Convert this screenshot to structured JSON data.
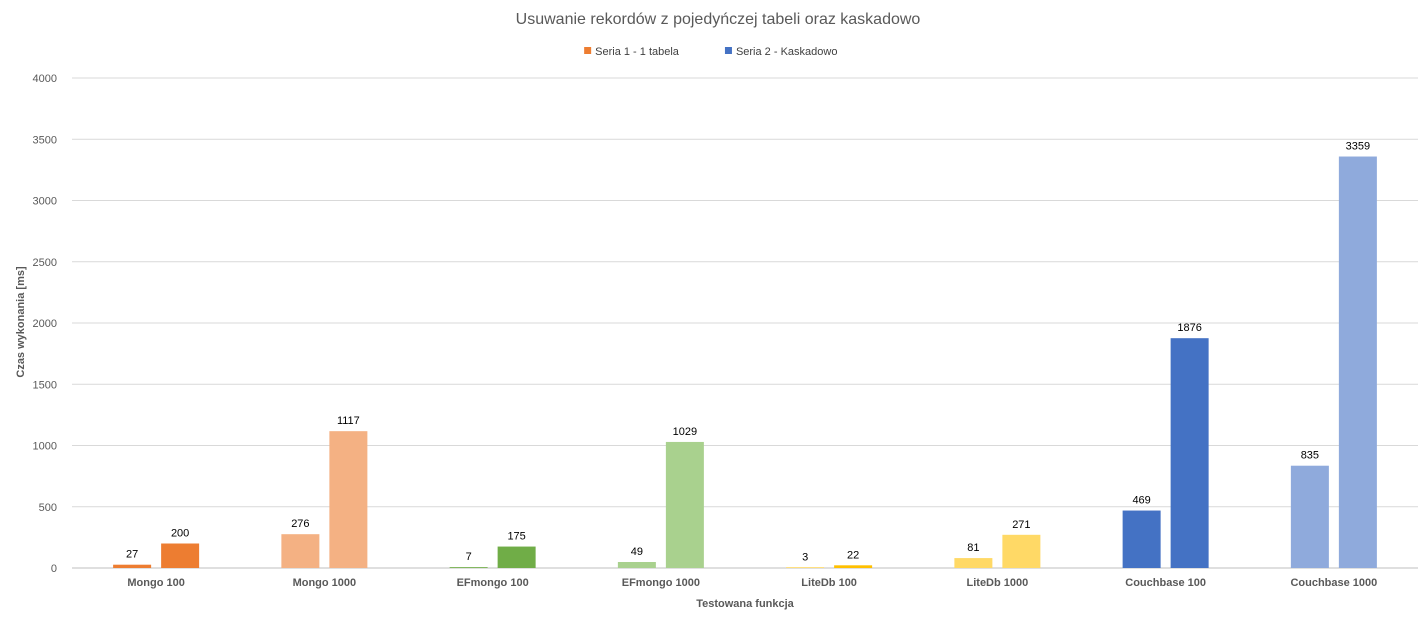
{
  "chart_data": {
    "type": "bar",
    "title": "Usuwanie rekordów z pojedyńczej tabeli oraz kaskadowo",
    "xlabel": "Testowana funkcja",
    "ylabel": "Czas wykonania [ms]",
    "ylim": [
      0,
      4000
    ],
    "yticks": [
      0,
      500,
      1000,
      1500,
      2000,
      2500,
      3000,
      3500,
      4000
    ],
    "grid": true,
    "legend_position": "top",
    "categories": [
      "Mongo  100",
      "Mongo 1000",
      "EFmongo 100",
      "EFmongo 1000",
      "LiteDb 100",
      "LiteDb 1000",
      "Couchbase 100",
      "Couchbase 1000"
    ],
    "series": [
      {
        "name": "Seria 1 - 1 tabela",
        "legend_color": "#ED7D31",
        "values": [
          27,
          276,
          7,
          49,
          3,
          81,
          469,
          835
        ]
      },
      {
        "name": "Seria 2 - Kaskadowo",
        "legend_color": "#4472C4",
        "values": [
          200,
          1117,
          175,
          1029,
          22,
          271,
          1876,
          3359
        ]
      }
    ],
    "point_colors": [
      [
        "#ED7D31",
        "#F4B183",
        "#70AD47",
        "#A9D18E",
        "#FFC000",
        "#FFD966",
        "#4472C4",
        "#8FAADC"
      ],
      [
        "#ED7D31",
        "#F4B183",
        "#70AD47",
        "#A9D18E",
        "#FFC000",
        "#FFD966",
        "#4472C4",
        "#8FAADC"
      ]
    ]
  }
}
